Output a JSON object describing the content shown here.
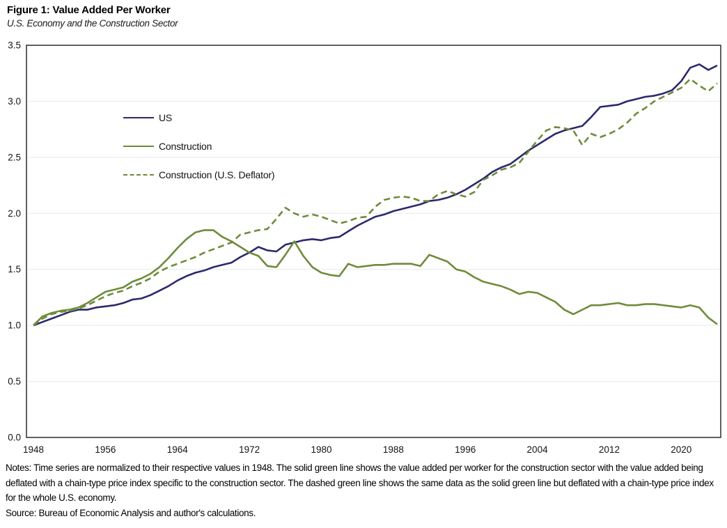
{
  "figure": {
    "title": "Figure 1: Value Added Per Worker",
    "subtitle": "U.S. Economy and the Construction Sector",
    "notes": "Notes: Time series are normalized to their respective values in 1948. The solid green line shows the value added per worker for the construction sector with the value added being deflated with a chain-type price index specific to the construction sector. The dashed green line shows the same data as the solid green line but deflated with a chain-type price index for the whole U.S. economy.",
    "source": "Source: Bureau of Economic Analysis and author's calculations."
  },
  "chart_data": {
    "type": "line",
    "title": "Figure 1: Value Added Per Worker",
    "subtitle": "U.S. Economy and the Construction Sector",
    "xlabel": "",
    "ylabel": "",
    "xlim": [
      1948,
      2024
    ],
    "ylim": [
      0,
      3.5
    ],
    "grid": true,
    "legend_position": "upper-left-inside",
    "xticks": [
      1948,
      1956,
      1964,
      1972,
      1980,
      1988,
      1996,
      2004,
      2012,
      2020
    ],
    "yticks": [
      0.0,
      0.5,
      1.0,
      1.5,
      2.0,
      2.5,
      3.0,
      3.5
    ],
    "ytick_labels": [
      "0.0",
      "0.5",
      "1.0",
      "1.5",
      "2.0",
      "2.5",
      "3.0",
      "3.5"
    ],
    "x": [
      1948,
      1949,
      1950,
      1951,
      1952,
      1953,
      1954,
      1955,
      1956,
      1957,
      1958,
      1959,
      1960,
      1961,
      1962,
      1963,
      1964,
      1965,
      1966,
      1967,
      1968,
      1969,
      1970,
      1971,
      1972,
      1973,
      1974,
      1975,
      1976,
      1977,
      1978,
      1979,
      1980,
      1981,
      1982,
      1983,
      1984,
      1985,
      1986,
      1987,
      1988,
      1989,
      1990,
      1991,
      1992,
      1993,
      1994,
      1995,
      1996,
      1997,
      1998,
      1999,
      2000,
      2001,
      2002,
      2003,
      2004,
      2005,
      2006,
      2007,
      2008,
      2009,
      2010,
      2011,
      2012,
      2013,
      2014,
      2015,
      2016,
      2017,
      2018,
      2019,
      2020,
      2021,
      2022,
      2023,
      2024
    ],
    "series": [
      {
        "name": "US",
        "color": "#2b296b",
        "style": "solid",
        "values": [
          1.0,
          1.03,
          1.06,
          1.09,
          1.12,
          1.14,
          1.14,
          1.16,
          1.17,
          1.18,
          1.2,
          1.23,
          1.24,
          1.27,
          1.31,
          1.35,
          1.4,
          1.44,
          1.47,
          1.49,
          1.52,
          1.54,
          1.56,
          1.61,
          1.65,
          1.7,
          1.67,
          1.66,
          1.72,
          1.74,
          1.76,
          1.77,
          1.76,
          1.78,
          1.79,
          1.84,
          1.89,
          1.93,
          1.97,
          1.99,
          2.02,
          2.04,
          2.06,
          2.08,
          2.11,
          2.12,
          2.14,
          2.17,
          2.21,
          2.26,
          2.31,
          2.37,
          2.41,
          2.44,
          2.5,
          2.56,
          2.61,
          2.66,
          2.71,
          2.74,
          2.76,
          2.78,
          2.86,
          2.95,
          2.96,
          2.97,
          3.0,
          3.02,
          3.04,
          3.05,
          3.07,
          3.1,
          3.18,
          3.3,
          3.33,
          3.28,
          3.32
        ]
      },
      {
        "name": "Construction",
        "color": "#6e8b3a",
        "style": "solid",
        "values": [
          1.0,
          1.08,
          1.11,
          1.13,
          1.14,
          1.16,
          1.2,
          1.25,
          1.3,
          1.32,
          1.34,
          1.39,
          1.42,
          1.46,
          1.52,
          1.6,
          1.69,
          1.77,
          1.83,
          1.85,
          1.85,
          1.79,
          1.75,
          1.7,
          1.65,
          1.62,
          1.53,
          1.52,
          1.63,
          1.75,
          1.62,
          1.52,
          1.47,
          1.45,
          1.44,
          1.55,
          1.52,
          1.53,
          1.54,
          1.54,
          1.55,
          1.55,
          1.55,
          1.53,
          1.63,
          1.6,
          1.57,
          1.5,
          1.48,
          1.43,
          1.39,
          1.37,
          1.35,
          1.32,
          1.28,
          1.3,
          1.29,
          1.25,
          1.21,
          1.14,
          1.1,
          1.14,
          1.18,
          1.18,
          1.19,
          1.2,
          1.18,
          1.18,
          1.19,
          1.19,
          1.18,
          1.17,
          1.16,
          1.18,
          1.16,
          1.07,
          1.01
        ]
      },
      {
        "name": "Construction (U.S. Deflator)",
        "color": "#6e8b3a",
        "style": "dashed",
        "values": [
          1.0,
          1.06,
          1.1,
          1.12,
          1.13,
          1.15,
          1.18,
          1.22,
          1.26,
          1.29,
          1.31,
          1.35,
          1.38,
          1.42,
          1.48,
          1.52,
          1.55,
          1.58,
          1.61,
          1.65,
          1.68,
          1.71,
          1.74,
          1.81,
          1.83,
          1.85,
          1.86,
          1.95,
          2.05,
          2.0,
          1.97,
          1.99,
          1.97,
          1.94,
          1.91,
          1.93,
          1.96,
          1.97,
          2.06,
          2.12,
          2.14,
          2.15,
          2.14,
          2.11,
          2.11,
          2.17,
          2.2,
          2.17,
          2.15,
          2.19,
          2.3,
          2.34,
          2.39,
          2.41,
          2.45,
          2.55,
          2.65,
          2.74,
          2.77,
          2.76,
          2.74,
          2.61,
          2.71,
          2.68,
          2.71,
          2.75,
          2.81,
          2.89,
          2.94,
          3.0,
          3.04,
          3.08,
          3.12,
          3.2,
          3.14,
          3.09,
          3.16
        ]
      }
    ]
  }
}
